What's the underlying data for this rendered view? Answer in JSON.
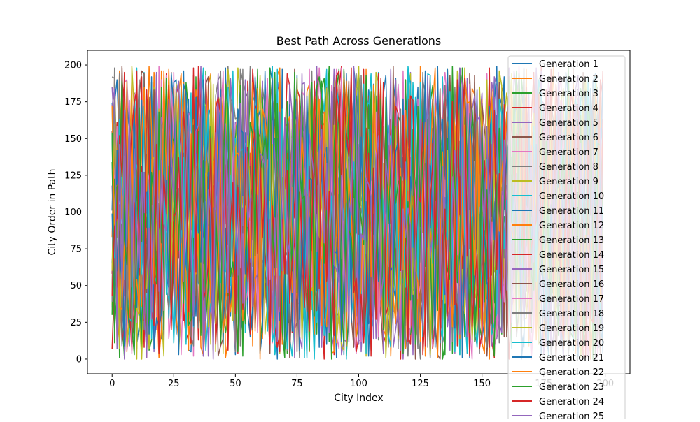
{
  "chart_data": {
    "type": "line",
    "title": "Best Path Across Generations",
    "xlabel": "City Index",
    "ylabel": "City Order in Path",
    "xlim": [
      -10,
      210
    ],
    "ylim": [
      -10,
      210
    ],
    "xticks": [
      0,
      25,
      50,
      75,
      100,
      125,
      150,
      175,
      200
    ],
    "yticks": [
      0,
      25,
      50,
      75,
      100,
      125,
      150,
      175,
      200
    ],
    "x_range": [
      0,
      199
    ],
    "y_range": [
      0,
      199
    ],
    "n_points_per_series": 200,
    "grid": false,
    "legend_placement": "upper right",
    "series": [
      {
        "name": "Generation 1",
        "color": "#1f77b4"
      },
      {
        "name": "Generation 2",
        "color": "#ff7f0e"
      },
      {
        "name": "Generation 3",
        "color": "#2ca02c"
      },
      {
        "name": "Generation 4",
        "color": "#d62728"
      },
      {
        "name": "Generation 5",
        "color": "#9467bd"
      },
      {
        "name": "Generation 6",
        "color": "#8c564b"
      },
      {
        "name": "Generation 7",
        "color": "#e377c2"
      },
      {
        "name": "Generation 8",
        "color": "#7f7f7f"
      },
      {
        "name": "Generation 9",
        "color": "#bcbd22"
      },
      {
        "name": "Generation 10",
        "color": "#17becf"
      },
      {
        "name": "Generation 11",
        "color": "#1f77b4"
      },
      {
        "name": "Generation 12",
        "color": "#ff7f0e"
      },
      {
        "name": "Generation 13",
        "color": "#2ca02c"
      },
      {
        "name": "Generation 14",
        "color": "#d62728"
      },
      {
        "name": "Generation 15",
        "color": "#9467bd"
      },
      {
        "name": "Generation 16",
        "color": "#8c564b"
      },
      {
        "name": "Generation 17",
        "color": "#e377c2"
      },
      {
        "name": "Generation 18",
        "color": "#7f7f7f"
      },
      {
        "name": "Generation 19",
        "color": "#bcbd22"
      },
      {
        "name": "Generation 20",
        "color": "#17becf"
      },
      {
        "name": "Generation 21",
        "color": "#1f77b4"
      },
      {
        "name": "Generation 22",
        "color": "#ff7f0e"
      },
      {
        "name": "Generation 23",
        "color": "#2ca02c"
      },
      {
        "name": "Generation 24",
        "color": "#d62728"
      },
      {
        "name": "Generation 25",
        "color": "#9467bd"
      }
    ]
  }
}
